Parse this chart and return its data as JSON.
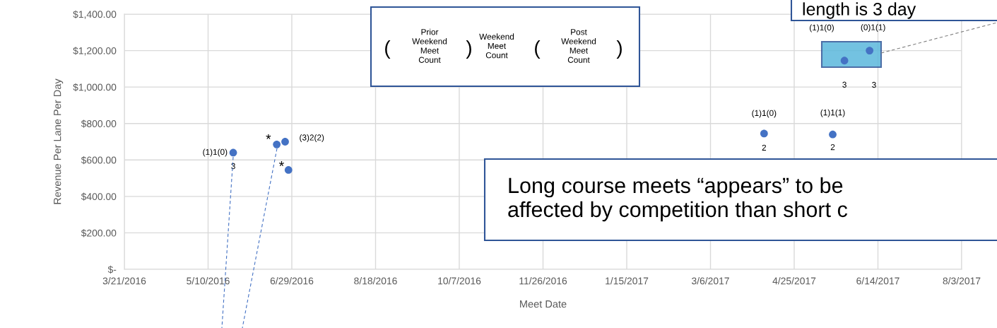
{
  "chart_data": {
    "type": "scatter",
    "xlabel": "Meet Date",
    "ylabel": "Revenue Per Lane Per Day",
    "x": [
      "2016-05-25",
      "2016-06-20",
      "2016-06-25",
      "2016-06-27",
      "2017-04-07",
      "2017-05-18",
      "2017-05-25",
      "2017-06-09"
    ],
    "series": [
      {
        "color": "#4472c4",
        "values": [
          640,
          685,
          700,
          545,
          745,
          740,
          1145,
          1200
        ]
      }
    ],
    "xlim": [
      "2016-03-21",
      "2017-08-03"
    ],
    "xticks": [
      {
        "value": "2016-03-21",
        "label": "3/21/2016"
      },
      {
        "value": "2016-05-10",
        "label": "5/10/2016"
      },
      {
        "value": "2016-06-29",
        "label": "6/29/2016"
      },
      {
        "value": "2016-08-18",
        "label": "8/18/2016"
      },
      {
        "value": "2016-10-07",
        "label": "10/7/2016"
      },
      {
        "value": "2016-11-26",
        "label": "11/26/2016"
      },
      {
        "value": "2017-01-15",
        "label": "1/15/2017"
      },
      {
        "value": "2017-03-06",
        "label": "3/6/2017"
      },
      {
        "value": "2017-04-25",
        "label": "4/25/2017"
      },
      {
        "value": "2017-06-14",
        "label": "6/14/2017"
      },
      {
        "value": "2017-08-03",
        "label": "8/3/2017"
      }
    ],
    "ylim": [
      0,
      1400
    ],
    "yticks": [
      {
        "value": 0,
        "label": "$-"
      },
      {
        "value": 200,
        "label": "$200.00"
      },
      {
        "value": 400,
        "label": "$400.00"
      },
      {
        "value": 600,
        "label": "$600.00"
      },
      {
        "value": 800,
        "label": "$800.00"
      },
      {
        "value": 1000,
        "label": "$1,000.00"
      },
      {
        "value": 1200,
        "label": "$1,200.00"
      },
      {
        "value": 1400,
        "label": "$1,400.00"
      }
    ],
    "grid": true,
    "marker": "circle",
    "legend": false,
    "annotations": [
      {
        "text": "(1)1(0)",
        "x": "2016-05-25",
        "y": 640
      },
      {
        "text": "3",
        "x": "2016-05-25",
        "y": 640
      },
      {
        "text": "*",
        "x": "2016-06-20",
        "y": 685
      },
      {
        "text": "(3)2(2)",
        "x": "2016-06-25",
        "y": 700
      },
      {
        "text": "*",
        "x": "2016-06-27",
        "y": 545
      },
      {
        "text": "(1)1(0)",
        "x": "2017-04-07",
        "y": 745
      },
      {
        "text": "2",
        "x": "2017-04-07",
        "y": 745
      },
      {
        "text": "(1)1(1)",
        "x": "2017-05-18",
        "y": 740
      },
      {
        "text": "2",
        "x": "2017-05-18",
        "y": 740
      },
      {
        "text": "3",
        "x": "2017-05-25",
        "y": 1145
      },
      {
        "text": "(0)1(1)",
        "x": "2017-06-09",
        "y": 1200
      },
      "Prior\nWeekend\nMeet\nCount",
      "Weekend\nMeet\nCount",
      "Post\nWeekend\nMeet\nCount",
      "(",
      ")",
      "(",
      ")",
      "length is 3 day",
      "Long course meets “appears” to be\naffected by competition than short c",
      "(1)1(0)",
      "3"
    ]
  }
}
